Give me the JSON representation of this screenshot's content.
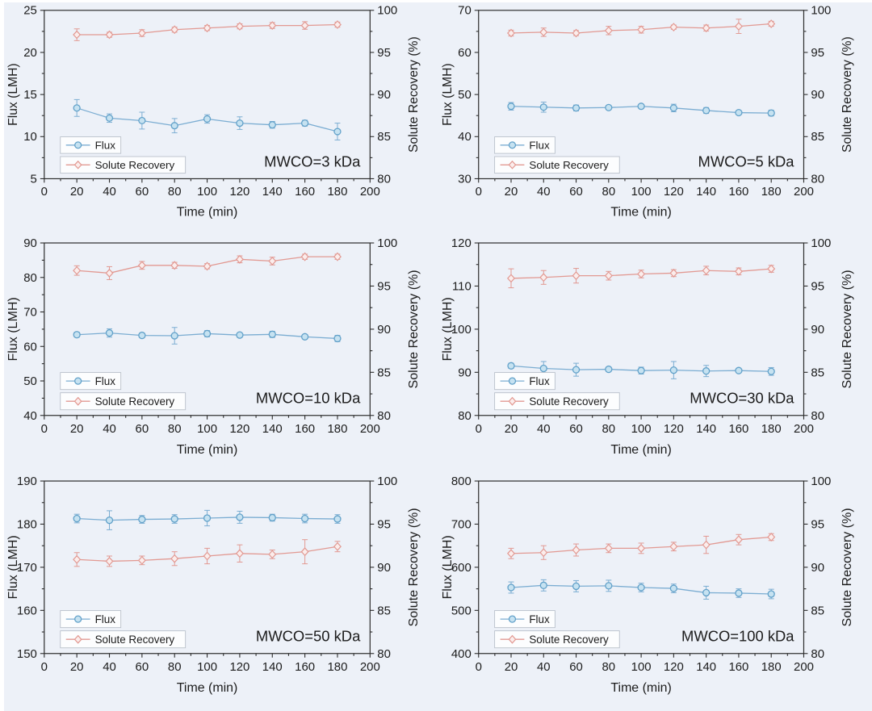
{
  "page": {
    "background": "#edf1f8",
    "frame_color": "#2b2b2b",
    "text_color": "#1c1c1c",
    "legend_box_fill": "#fcfdfe",
    "legend_box_stroke": "#b9c0ca"
  },
  "series_style": {
    "flux": {
      "line_color": "#7badd2",
      "marker": "circle",
      "marker_fill": "#c6e2f1",
      "marker_stroke": "#62a1c9"
    },
    "recovery": {
      "line_color": "#e29992",
      "marker": "diamond",
      "marker_fill": "#fbedec",
      "marker_stroke": "#e29992"
    }
  },
  "chart_data": [
    {
      "type": "line",
      "annotation": "MWCO=3 kDa",
      "xlabel": "Time (min)",
      "ylabel_left": "Flux (LMH)",
      "ylabel_right": "Solute Recovery (%)",
      "xlim": [
        0,
        200
      ],
      "x_step": 20,
      "ylim_left": [
        5,
        25
      ],
      "y_step_left": 5,
      "ylim_right": [
        80,
        100
      ],
      "y_step_right": 5,
      "grid": false,
      "legend_position": "lower-left",
      "x": [
        20,
        40,
        60,
        80,
        100,
        120,
        140,
        160,
        180
      ],
      "series": [
        {
          "key": "flux",
          "name": "Flux",
          "axis": "left",
          "values": [
            13.4,
            12.2,
            11.9,
            11.3,
            12.1,
            11.6,
            11.4,
            11.6,
            10.6
          ],
          "errors": [
            1.0,
            0.5,
            1.0,
            0.85,
            0.5,
            0.75,
            0.4,
            0.35,
            1.0
          ]
        },
        {
          "key": "recovery",
          "name": "Solute Recovery",
          "axis": "right",
          "values": [
            97.1,
            97.1,
            97.3,
            97.7,
            97.9,
            98.1,
            98.2,
            98.2,
            98.3
          ],
          "errors": [
            0.7,
            0.3,
            0.4,
            0.3,
            0.3,
            0.3,
            0.35,
            0.45,
            0.3
          ]
        }
      ]
    },
    {
      "type": "line",
      "annotation": "MWCO=5 kDa",
      "xlabel": "Time (min)",
      "ylabel_left": "Flux (LMH)",
      "ylabel_right": "Solute Recovery (%)",
      "xlim": [
        0,
        200
      ],
      "x_step": 20,
      "ylim_left": [
        30,
        70
      ],
      "y_step_left": 10,
      "ylim_right": [
        80,
        100
      ],
      "y_step_right": 5,
      "grid": false,
      "legend_position": "lower-left",
      "x": [
        20,
        40,
        60,
        80,
        100,
        120,
        140,
        160,
        180
      ],
      "series": [
        {
          "key": "flux",
          "name": "Flux",
          "axis": "left",
          "values": [
            47.2,
            47.0,
            46.8,
            46.9,
            47.2,
            46.8,
            46.2,
            45.7,
            45.6
          ],
          "errors": [
            0.9,
            1.2,
            0.7,
            0.4,
            0.4,
            0.9,
            0.7,
            0.3,
            0.7
          ]
        },
        {
          "key": "recovery",
          "name": "Solute Recovery",
          "axis": "right",
          "values": [
            97.3,
            97.4,
            97.3,
            97.6,
            97.7,
            98.0,
            97.9,
            98.1,
            98.4
          ],
          "errors": [
            0.35,
            0.5,
            0.3,
            0.5,
            0.4,
            0.25,
            0.35,
            0.85,
            0.3
          ]
        }
      ]
    },
    {
      "type": "line",
      "annotation": "MWCO=10 kDa",
      "xlabel": "Time (min)",
      "ylabel_left": "Flux (LMH)",
      "ylabel_right": "Solute Recovery (%)",
      "xlim": [
        0,
        200
      ],
      "x_step": 20,
      "ylim_left": [
        40,
        90
      ],
      "y_step_left": 10,
      "ylim_right": [
        80,
        100
      ],
      "y_step_right": 5,
      "grid": false,
      "legend_position": "lower-left",
      "x": [
        20,
        40,
        60,
        80,
        100,
        120,
        140,
        160,
        180
      ],
      "series": [
        {
          "key": "flux",
          "name": "Flux",
          "axis": "left",
          "values": [
            63.4,
            63.9,
            63.2,
            63.1,
            63.7,
            63.3,
            63.5,
            62.8,
            62.3
          ],
          "errors": [
            0.7,
            1.2,
            0.7,
            2.4,
            0.9,
            0.6,
            0.9,
            0.5,
            0.9
          ]
        },
        {
          "key": "recovery",
          "name": "Solute Recovery",
          "axis": "right",
          "values": [
            96.8,
            96.5,
            97.4,
            97.4,
            97.3,
            98.1,
            97.9,
            98.4,
            98.4
          ],
          "errors": [
            0.55,
            0.75,
            0.45,
            0.35,
            0.3,
            0.4,
            0.45,
            0.3,
            0.3
          ]
        }
      ]
    },
    {
      "type": "line",
      "annotation": "MWCO=30 kDa",
      "xlabel": "Time (min)",
      "ylabel_left": "Flux (LMH)",
      "ylabel_right": "Solute Recovery (%)",
      "xlim": [
        0,
        200
      ],
      "x_step": 20,
      "ylim_left": [
        80,
        120
      ],
      "y_step_left": 10,
      "ylim_right": [
        80,
        100
      ],
      "y_step_right": 5,
      "grid": false,
      "legend_position": "lower-left",
      "x": [
        20,
        40,
        60,
        80,
        100,
        120,
        140,
        160,
        180
      ],
      "series": [
        {
          "key": "flux",
          "name": "Flux",
          "axis": "left",
          "values": [
            91.5,
            90.9,
            90.6,
            90.7,
            90.4,
            90.5,
            90.3,
            90.4,
            90.2
          ],
          "errors": [
            0.6,
            1.6,
            1.5,
            0.5,
            0.8,
            2.0,
            1.3,
            0.4,
            0.9
          ]
        },
        {
          "key": "recovery",
          "name": "Solute Recovery",
          "axis": "right",
          "values": [
            95.9,
            96.0,
            96.2,
            96.2,
            96.4,
            96.5,
            96.8,
            96.7,
            97.0
          ],
          "errors": [
            1.1,
            0.8,
            0.85,
            0.5,
            0.45,
            0.4,
            0.5,
            0.4,
            0.4
          ]
        }
      ]
    },
    {
      "type": "line",
      "annotation": "MWCO=50 kDa",
      "xlabel": "Time (min)",
      "ylabel_left": "Flux (LMH)",
      "ylabel_right": "Solute Recovery (%)",
      "xlim": [
        0,
        200
      ],
      "x_step": 20,
      "ylim_left": [
        150,
        190
      ],
      "y_step_left": 10,
      "ylim_right": [
        80,
        100
      ],
      "y_step_right": 5,
      "grid": false,
      "legend_position": "lower-left",
      "x": [
        20,
        40,
        60,
        80,
        100,
        120,
        140,
        160,
        180
      ],
      "series": [
        {
          "key": "flux",
          "name": "Flux",
          "axis": "left",
          "values": [
            181.3,
            180.9,
            181.1,
            181.2,
            181.4,
            181.6,
            181.5,
            181.3,
            181.2
          ],
          "errors": [
            1.0,
            2.2,
            0.9,
            1.0,
            1.8,
            1.4,
            0.8,
            1.0,
            1.0
          ]
        },
        {
          "key": "recovery",
          "name": "Solute Recovery",
          "axis": "right",
          "values": [
            90.9,
            90.7,
            90.8,
            91.0,
            91.3,
            91.6,
            91.5,
            91.8,
            92.4
          ],
          "errors": [
            0.8,
            0.6,
            0.5,
            0.8,
            0.9,
            1.0,
            0.5,
            1.4,
            0.6
          ]
        }
      ]
    },
    {
      "type": "line",
      "annotation": "MWCO=100 kDa",
      "xlabel": "Time (min)",
      "ylabel_left": "Flux (LMH)",
      "ylabel_right": "Solute Recovery (%)",
      "xlim": [
        0,
        200
      ],
      "x_step": 20,
      "ylim_left": [
        400,
        800
      ],
      "y_step_left": 100,
      "ylim_right": [
        80,
        100
      ],
      "y_step_right": 5,
      "grid": false,
      "legend_position": "lower-left",
      "x": [
        20,
        40,
        60,
        80,
        100,
        120,
        140,
        160,
        180
      ],
      "series": [
        {
          "key": "flux",
          "name": "Flux",
          "axis": "left",
          "values": [
            553,
            558,
            556,
            557,
            553,
            551,
            541,
            540,
            538
          ],
          "errors": [
            13,
            13,
            13,
            13,
            10,
            10,
            15,
            10,
            11
          ]
        },
        {
          "key": "recovery",
          "name": "Solute Recovery",
          "axis": "right",
          "values": [
            91.6,
            91.7,
            92.0,
            92.2,
            92.2,
            92.4,
            92.6,
            93.2,
            93.5
          ],
          "errors": [
            0.6,
            0.8,
            0.7,
            0.5,
            0.6,
            0.5,
            1.0,
            0.6,
            0.4
          ]
        }
      ]
    }
  ]
}
